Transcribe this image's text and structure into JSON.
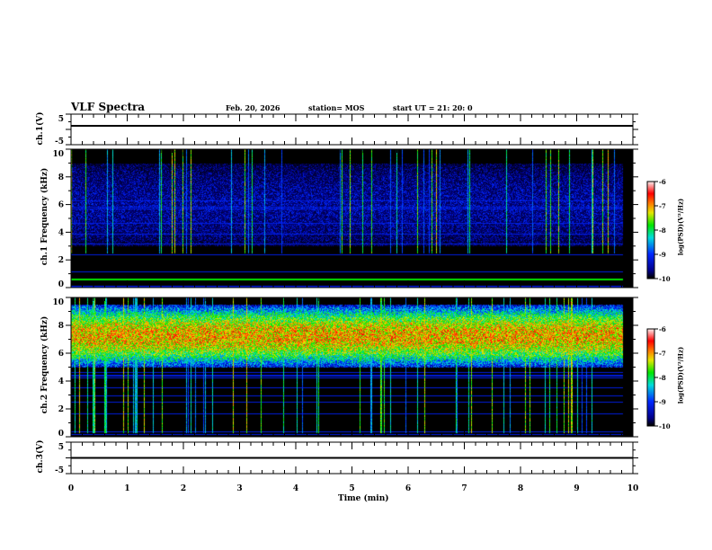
{
  "header": {
    "title": "VLF Spectra",
    "date": "Feb. 20, 2026",
    "station": "station= MOS",
    "start": "start  UT =   21: 20: 0"
  },
  "chart_data": {
    "type": "heatmap",
    "xlabel": "Time  (min)",
    "xlim": [
      0,
      10
    ],
    "xticks": [
      "0",
      "1",
      "2",
      "3",
      "4",
      "5",
      "6",
      "7",
      "8",
      "9",
      "10"
    ],
    "panels": [
      {
        "id": "ch1_voltage",
        "ylabel": "ch.1(V)",
        "ylim": [
          -5,
          5
        ],
        "yticks": [
          "5",
          "-5"
        ],
        "trace_value": 0
      },
      {
        "id": "ch1_spectrum",
        "ylabel": "ch.1 Frequency (kHz)",
        "ylim": [
          0,
          10
        ],
        "yticks": [
          "0",
          "2",
          "4",
          "6",
          "8",
          "10"
        ],
        "dominant_band_khz": [
          3,
          9
        ],
        "line_khz": 0.6,
        "colorbar": {
          "label": "log(PSD)(V²/Hz)",
          "range": [
            -10,
            -6
          ],
          "ticks": [
            "-6",
            "-7",
            "-8",
            "-9",
            "-10"
          ]
        }
      },
      {
        "id": "ch2_spectrum",
        "ylabel": "ch.2 Frequency (kHz)",
        "ylim": [
          0,
          10
        ],
        "yticks": [
          "0",
          "2",
          "4",
          "6",
          "8",
          "10"
        ],
        "dominant_band_khz": [
          5,
          9.5
        ],
        "colorbar": {
          "label": "log(PSD)(V²/Hz)",
          "range": [
            -10,
            -6
          ],
          "ticks": [
            "-6",
            "-7",
            "-8",
            "-9",
            "-10"
          ]
        }
      },
      {
        "id": "ch3_voltage",
        "ylabel": "ch.3(V)",
        "ylim": [
          -5,
          5
        ],
        "yticks": [
          "5",
          "-5"
        ],
        "trace_value": 0
      }
    ]
  }
}
